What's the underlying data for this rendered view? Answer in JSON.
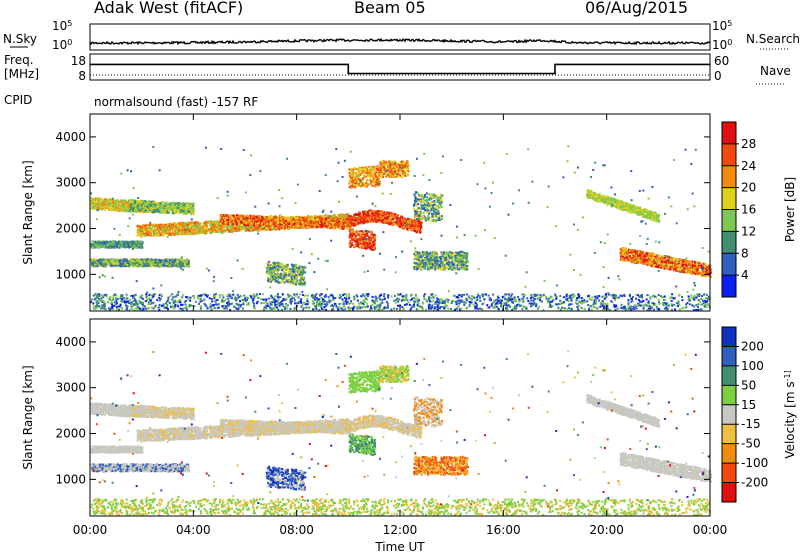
{
  "header": {
    "station": "Adak West (fitACF)",
    "beam": "Beam 05",
    "date": "06/Aug/2015"
  },
  "side_labels": {
    "nsky": "N.Sky",
    "nsearch": "N.Search",
    "freq_line1": "Freq.",
    "freq_line2": "[MHz]",
    "nave": "Nave",
    "cpid": "CPID",
    "cpid_value": "normalsound (fast) -157 RF"
  },
  "noise_axis": {
    "left_ticks": [
      "10^5",
      "10^0"
    ],
    "right_ticks": [
      "10^5",
      "10^0"
    ]
  },
  "freq_axis": {
    "left_ticks": [
      "18",
      "8"
    ],
    "right_ticks": [
      "60",
      "0"
    ]
  },
  "colors": {
    "power_scale": [
      "#0a1ff0",
      "#2f5fbf",
      "#3f8f6f",
      "#7dc850",
      "#e0d020",
      "#f08c10",
      "#f04a10",
      "#e01010"
    ],
    "velocity_scale": [
      "#e01010",
      "#f04a10",
      "#f08c10",
      "#f0be40",
      "#c8c8c0",
      "#7cd040",
      "#3f8f6f",
      "#2f5fbf",
      "#1030c0"
    ]
  },
  "chart_data": [
    {
      "type": "heatmap",
      "name": "power",
      "ylabel": "Slant Range [km]",
      "yticks": [
        "1000",
        "2000",
        "3000",
        "4000"
      ],
      "ylim": [
        200,
        4500
      ],
      "xlim": [
        "00:00",
        "24:00"
      ],
      "colorbar": {
        "label": "Power [dB]",
        "ticks": [
          "4",
          "8",
          "12",
          "16",
          "20",
          "24",
          "28"
        ]
      }
    },
    {
      "type": "heatmap",
      "name": "velocity",
      "ylabel": "Slant Range [km]",
      "yticks": [
        "1000",
        "2000",
        "3000",
        "4000"
      ],
      "ylim": [
        200,
        4500
      ],
      "xlim": [
        "00:00",
        "24:00"
      ],
      "colorbar": {
        "label": "Velocity [m s^-1]",
        "ticks": [
          "200",
          "100",
          "50",
          "15",
          "-15",
          "-50",
          "-100",
          "-200"
        ]
      }
    },
    {
      "type": "line",
      "name": "frequency",
      "x": [
        "00:00",
        "10:00",
        "10:00",
        "18:00",
        "18:00",
        "24:00"
      ],
      "y": [
        14,
        14,
        10.5,
        10.5,
        14,
        14
      ]
    }
  ],
  "xaxis": {
    "ticks": [
      "00:00",
      "04:00",
      "08:00",
      "12:00",
      "16:00",
      "20:00",
      "00:00"
    ],
    "label": "Time UT"
  }
}
